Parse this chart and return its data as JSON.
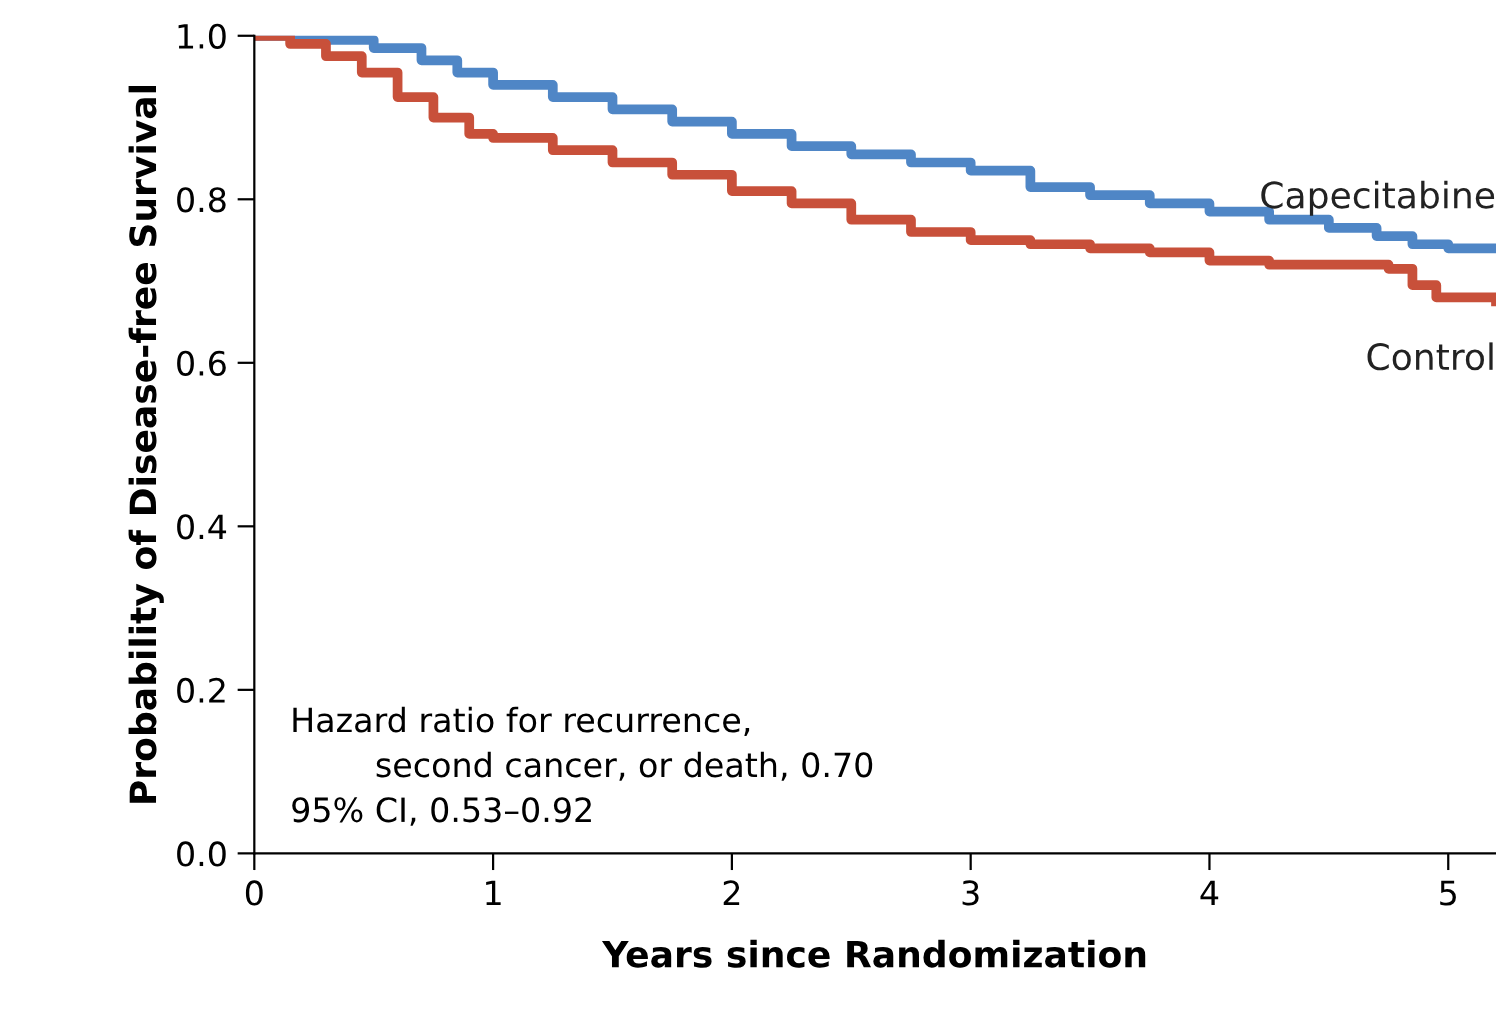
{
  "chart_data": {
    "type": "step",
    "xlabel": "Years since Randomization",
    "ylabel": "Probability of Disease-free Survival",
    "xlim": [
      0,
      5.2
    ],
    "ylim": [
      0,
      1.0
    ],
    "xticks": [
      0,
      1,
      2,
      3,
      4,
      5
    ],
    "yticks": [
      {
        "value": 0,
        "label": "0.0"
      },
      {
        "value": 0.2,
        "label": "0.2"
      },
      {
        "value": 0.4,
        "label": "0.4"
      },
      {
        "value": 0.6,
        "label": "0.6"
      },
      {
        "value": 0.8,
        "label": "0.8"
      },
      {
        "value": 1.0,
        "label": "1.0"
      }
    ],
    "grid": false,
    "legend": false,
    "series": [
      {
        "name": "Capecitabine",
        "color": "#4f86c6",
        "x": [
          0,
          0.25,
          0.5,
          0.7,
          0.85,
          1.0,
          1.25,
          1.5,
          1.75,
          2.0,
          2.25,
          2.5,
          2.75,
          3.0,
          3.25,
          3.5,
          3.75,
          4.0,
          4.25,
          4.5,
          4.7,
          4.85,
          5.0,
          5.2
        ],
        "values": [
          1.0,
          0.995,
          0.985,
          0.97,
          0.955,
          0.94,
          0.925,
          0.91,
          0.895,
          0.88,
          0.865,
          0.855,
          0.845,
          0.835,
          0.815,
          0.805,
          0.795,
          0.785,
          0.775,
          0.765,
          0.755,
          0.745,
          0.74,
          0.74
        ]
      },
      {
        "name": "Control",
        "color": "#c8503a",
        "x": [
          0,
          0.15,
          0.3,
          0.45,
          0.6,
          0.75,
          0.9,
          1.0,
          1.25,
          1.5,
          1.75,
          2.0,
          2.25,
          2.5,
          2.75,
          3.0,
          3.25,
          3.5,
          3.75,
          4.0,
          4.25,
          4.5,
          4.75,
          4.85,
          4.95,
          5.2
        ],
        "values": [
          1.0,
          0.99,
          0.975,
          0.955,
          0.925,
          0.9,
          0.88,
          0.875,
          0.86,
          0.845,
          0.83,
          0.81,
          0.795,
          0.775,
          0.76,
          0.75,
          0.745,
          0.74,
          0.735,
          0.725,
          0.72,
          0.72,
          0.715,
          0.695,
          0.68,
          0.675
        ]
      }
    ],
    "annotations": [
      "Hazard ratio for recurrence,\n        second cancer, or death, 0.70\n95% CI, 0.53–0.92"
    ]
  }
}
